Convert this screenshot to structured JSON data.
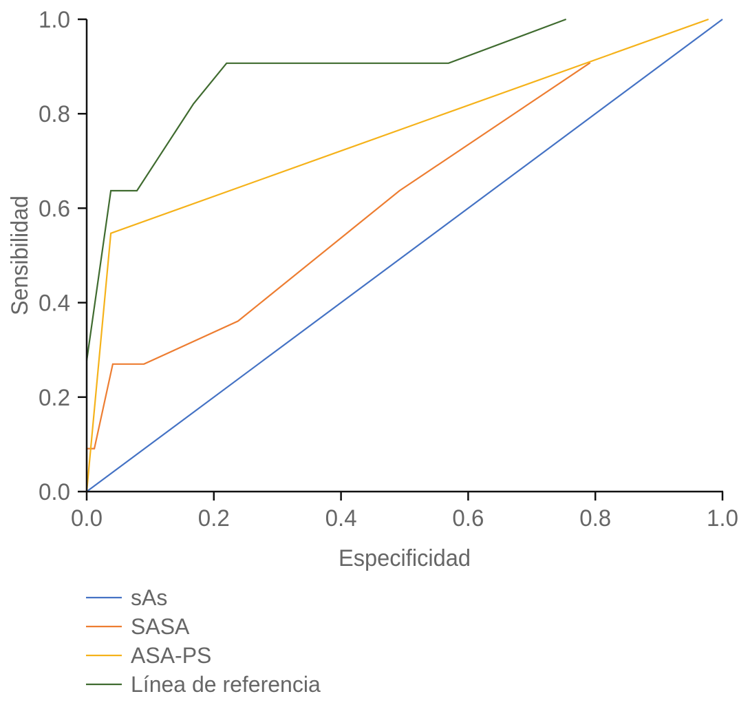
{
  "chart_data": {
    "type": "line",
    "title": "",
    "xlabel": "Especificidad",
    "ylabel": "Sensibilidad",
    "xlim": [
      0,
      1
    ],
    "ylim": [
      0,
      1
    ],
    "xticks": [
      "0.0",
      "0.2",
      "0.4",
      "0.6",
      "0.8",
      "1.0"
    ],
    "yticks": [
      "0.0",
      "0.2",
      "0.4",
      "0.6",
      "0.8",
      "1.0"
    ],
    "grid": false,
    "legend_position": "bottom-left",
    "series": [
      {
        "name": "sAs",
        "color": "#4472c4",
        "points": [
          [
            0,
            0
          ],
          [
            1,
            1
          ]
        ]
      },
      {
        "name": "SASA",
        "color": "#ed7d31",
        "points": [
          [
            0,
            0
          ],
          [
            0,
            0.091
          ],
          [
            0.012,
            0.091
          ],
          [
            0.041,
            0.27
          ],
          [
            0.09,
            0.27
          ],
          [
            0.238,
            0.361
          ],
          [
            0.492,
            0.637
          ],
          [
            0.792,
            0.908
          ]
        ]
      },
      {
        "name": "ASA-PS",
        "color": "#f5b21a",
        "points": [
          [
            0,
            0
          ],
          [
            0.038,
            0.547
          ],
          [
            0.978,
            1.0
          ]
        ]
      },
      {
        "name": "Línea de referencia",
        "color": "#3f6b2f",
        "points": [
          [
            0,
            0.277
          ],
          [
            0.038,
            0.637
          ],
          [
            0.079,
            0.637
          ],
          [
            0.168,
            0.821
          ],
          [
            0.22,
            0.907
          ],
          [
            0.569,
            0.907
          ],
          [
            0.754,
            1.0
          ]
        ]
      }
    ]
  }
}
